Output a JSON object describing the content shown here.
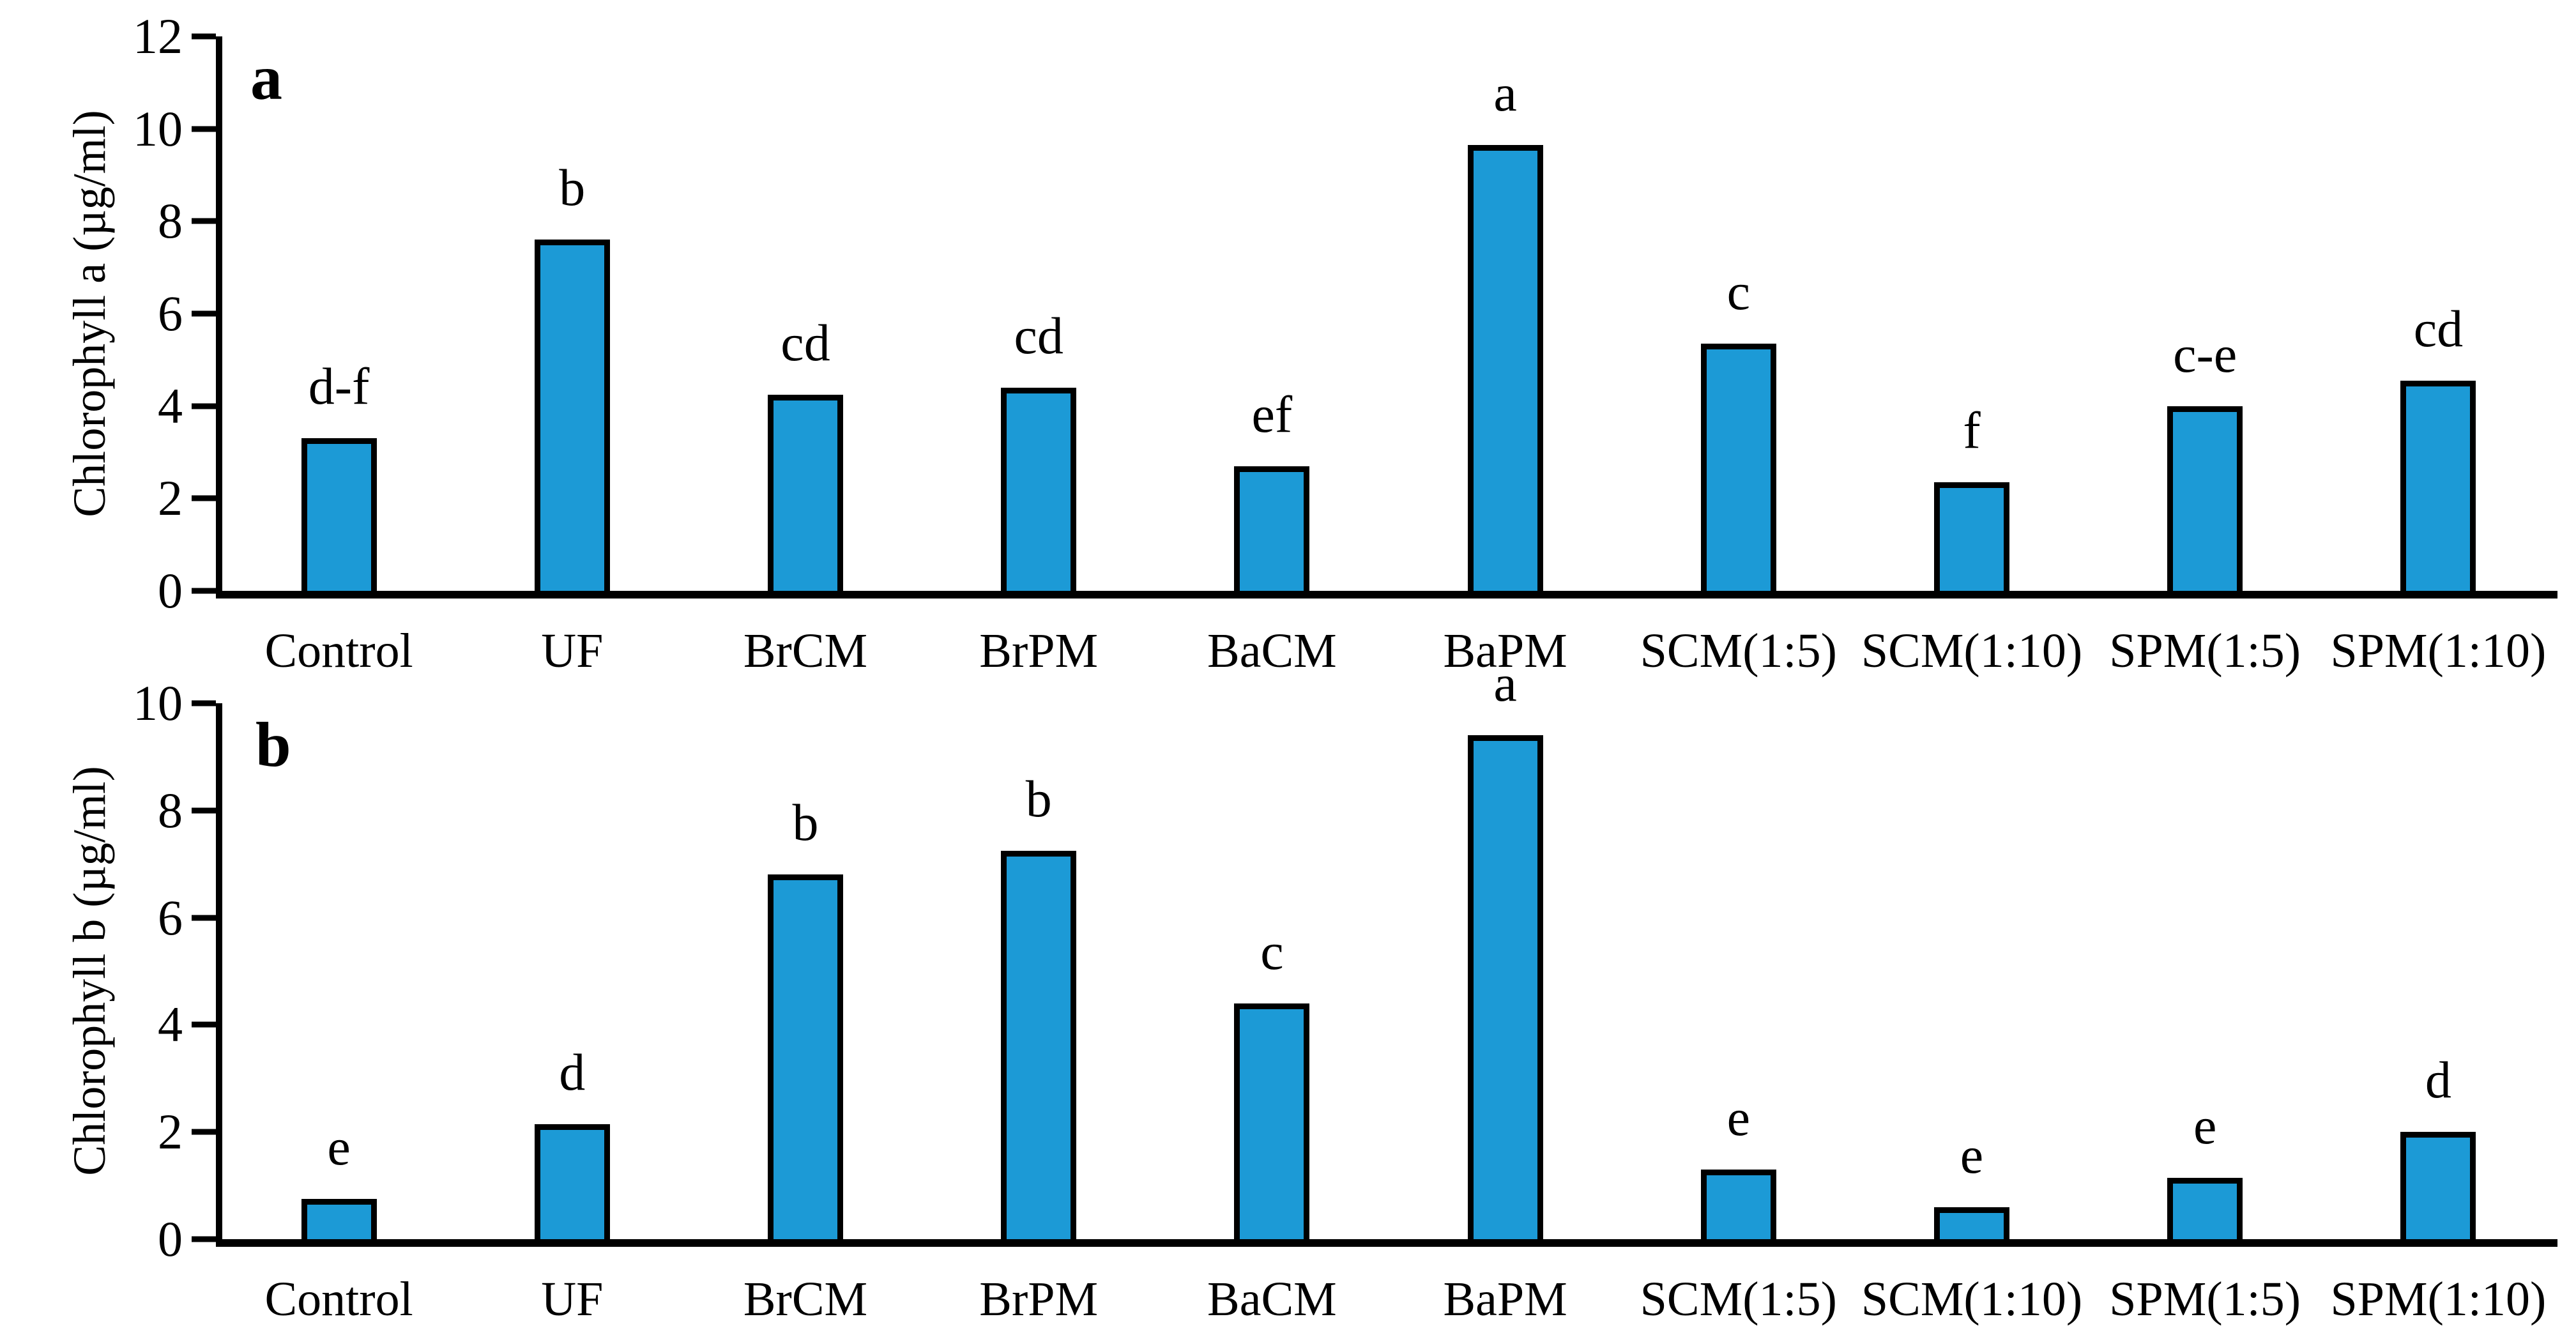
{
  "figure": {
    "background_color": "#ffffff",
    "bar_color": "#1C9AD6",
    "bar_border_color": "#000000",
    "axis_color": "#000000",
    "text_color": "#000000"
  },
  "chart_data": [
    {
      "type": "bar",
      "panel_label": "a",
      "title": "",
      "xlabel": "",
      "ylabel": "Chlorophyll a (µg/ml)",
      "ylim": [
        0,
        12
      ],
      "yticks": [
        0,
        2,
        4,
        6,
        8,
        10,
        12
      ],
      "grid": false,
      "legend": "none",
      "categories": [
        "Control",
        "UF",
        "BrCM",
        "BrPM",
        "BaCM",
        "BaPM",
        "SCM(1:5)",
        "SCM(1:10)",
        "SPM(1:5)",
        "SPM(1:10)"
      ],
      "values": [
        3.3,
        7.6,
        4.25,
        4.4,
        2.7,
        9.65,
        5.35,
        2.35,
        4.0,
        4.55
      ],
      "bar_labels": [
        "d-f",
        "b",
        "cd",
        "cd",
        "ef",
        "a",
        "c",
        "f",
        "c-e",
        "cd"
      ]
    },
    {
      "type": "bar",
      "panel_label": "b",
      "title": "",
      "xlabel": "",
      "ylabel": "Chlorophyll b (µg/ml)",
      "ylim": [
        0,
        10
      ],
      "yticks": [
        0,
        2,
        4,
        6,
        8,
        10
      ],
      "grid": false,
      "legend": "none",
      "categories": [
        "Control",
        "UF",
        "BrCM",
        "BrPM",
        "BaCM",
        "BaPM",
        "SCM(1:5)",
        "SCM(1:10)",
        "SPM(1:5)",
        "SPM(1:10)"
      ],
      "values": [
        0.75,
        2.15,
        6.8,
        7.25,
        4.4,
        9.4,
        1.3,
        0.6,
        1.15,
        2.0
      ],
      "bar_labels": [
        "e",
        "d",
        "b",
        "b",
        "c",
        "a",
        "e",
        "e",
        "e",
        "d"
      ]
    }
  ]
}
